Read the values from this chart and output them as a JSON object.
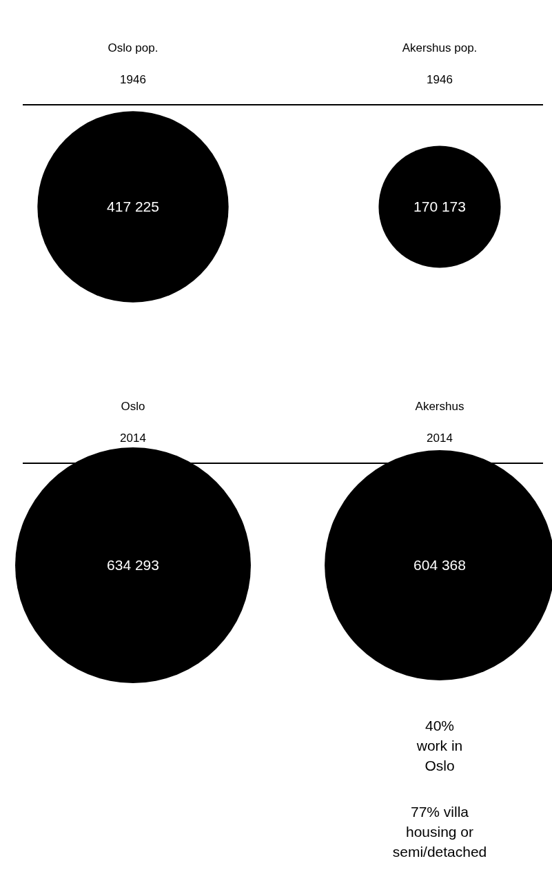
{
  "chart_data": [
    {
      "type": "other",
      "categories": [
        "Oslo pop.\n1946",
        "Akershus pop.\n1946"
      ],
      "values": [
        417225,
        170173
      ],
      "value_labels": [
        "417 225",
        "170 173"
      ],
      "colors": [
        "#000000",
        "#000000"
      ]
    },
    {
      "type": "other",
      "categories": [
        "Oslo\n2014",
        "Akershus\n2014"
      ],
      "values": [
        634293,
        604368
      ],
      "value_labels": [
        "634 293",
        "604 368"
      ],
      "colors": [
        "#000000",
        "#000000"
      ],
      "annotations": [
        "40%\nwork in\nOslo",
        "77% villa\nhousing or\nsemi/detached"
      ]
    }
  ]
}
